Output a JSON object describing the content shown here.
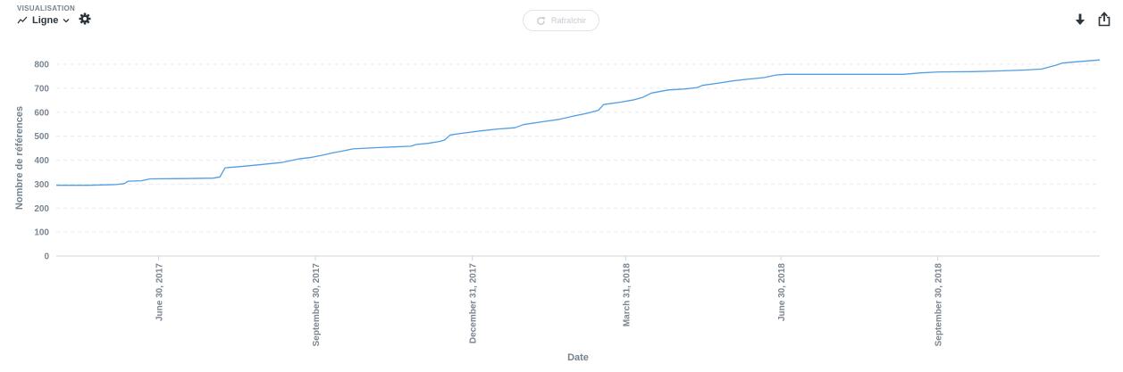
{
  "header": {
    "section_label": "VISUALISATION",
    "viz_type": "Ligne",
    "refresh_label": "Rafraîchir"
  },
  "icons": {
    "viz_type": "line-chart-icon",
    "dropdown": "chevron-down-icon",
    "settings": "gear-icon",
    "refresh": "refresh-icon",
    "download": "download-icon",
    "share": "share-icon"
  },
  "colors": {
    "series": "#509ee3",
    "grid": "#e6e9ec",
    "axis_text": "#7a8590"
  },
  "chart_data": {
    "type": "line",
    "xlabel": "Date",
    "ylabel": "Nombre de références",
    "ylim": [
      0,
      800
    ],
    "yticks": [
      0,
      100,
      200,
      300,
      400,
      500,
      600,
      700,
      800
    ],
    "xlim": [
      "2017-05-01",
      "2019-01-03"
    ],
    "xticks": [
      {
        "date": "2017-06-30",
        "label": "June 30, 2017"
      },
      {
        "date": "2017-09-30",
        "label": "September 30, 2017"
      },
      {
        "date": "2017-12-31",
        "label": "December 31, 2017"
      },
      {
        "date": "2018-03-31",
        "label": "March 31, 2018"
      },
      {
        "date": "2018-06-30",
        "label": "June 30, 2018"
      },
      {
        "date": "2018-09-30",
        "label": "September 30, 2018"
      }
    ],
    "grid": true,
    "series": [
      {
        "points": [
          [
            "2017-05-01",
            295
          ],
          [
            "2017-05-20",
            295
          ],
          [
            "2017-06-05",
            298
          ],
          [
            "2017-06-10",
            302
          ],
          [
            "2017-06-12",
            312
          ],
          [
            "2017-06-20",
            314
          ],
          [
            "2017-06-25",
            322
          ],
          [
            "2017-07-15",
            323
          ],
          [
            "2017-08-01",
            325
          ],
          [
            "2017-08-05",
            330
          ],
          [
            "2017-08-08",
            368
          ],
          [
            "2017-08-20",
            375
          ],
          [
            "2017-08-30",
            382
          ],
          [
            "2017-09-10",
            390
          ],
          [
            "2017-09-20",
            405
          ],
          [
            "2017-09-28",
            412
          ],
          [
            "2017-10-05",
            422
          ],
          [
            "2017-10-10",
            430
          ],
          [
            "2017-10-15",
            437
          ],
          [
            "2017-10-22",
            447
          ],
          [
            "2017-11-05",
            452
          ],
          [
            "2017-11-15",
            455
          ],
          [
            "2017-11-25",
            458
          ],
          [
            "2017-11-28",
            465
          ],
          [
            "2017-12-05",
            470
          ],
          [
            "2017-12-12",
            478
          ],
          [
            "2017-12-15",
            485
          ],
          [
            "2017-12-18",
            505
          ],
          [
            "2017-12-25",
            512
          ],
          [
            "2018-01-05",
            522
          ],
          [
            "2018-01-15",
            530
          ],
          [
            "2018-01-25",
            535
          ],
          [
            "2018-01-30",
            548
          ],
          [
            "2018-02-10",
            560
          ],
          [
            "2018-02-20",
            570
          ],
          [
            "2018-02-28",
            583
          ],
          [
            "2018-03-08",
            595
          ],
          [
            "2018-03-15",
            608
          ],
          [
            "2018-03-18",
            632
          ],
          [
            "2018-03-28",
            642
          ],
          [
            "2018-04-05",
            652
          ],
          [
            "2018-04-10",
            662
          ],
          [
            "2018-04-15",
            680
          ],
          [
            "2018-04-25",
            693
          ],
          [
            "2018-05-05",
            697
          ],
          [
            "2018-05-12",
            703
          ],
          [
            "2018-05-15",
            712
          ],
          [
            "2018-05-25",
            722
          ],
          [
            "2018-06-01",
            730
          ],
          [
            "2018-06-10",
            737
          ],
          [
            "2018-06-20",
            744
          ],
          [
            "2018-06-27",
            755
          ],
          [
            "2018-07-03",
            758
          ],
          [
            "2018-08-15",
            758
          ],
          [
            "2018-09-10",
            758
          ],
          [
            "2018-09-20",
            764
          ],
          [
            "2018-10-01",
            768
          ],
          [
            "2018-10-20",
            769
          ],
          [
            "2018-11-05",
            772
          ],
          [
            "2018-11-20",
            776
          ],
          [
            "2018-11-30",
            780
          ],
          [
            "2018-12-08",
            795
          ],
          [
            "2018-12-12",
            805
          ],
          [
            "2018-12-20",
            810
          ],
          [
            "2019-01-03",
            818
          ]
        ]
      }
    ]
  }
}
